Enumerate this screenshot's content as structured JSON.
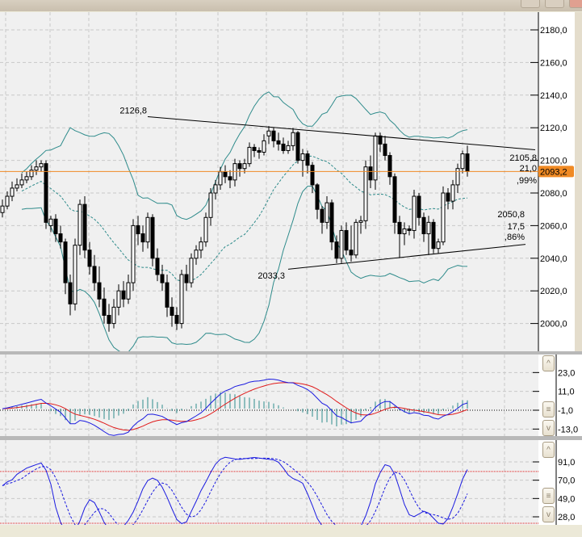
{
  "window": {
    "title_buttons": [
      "minimize-button",
      "maximize-button",
      "close-button"
    ],
    "colors": {
      "frame": "#ece9d8",
      "plot_bg": "#f0f0f0",
      "axis_bg": "#ffffff",
      "bands": "#2e8b8b",
      "orange": "#f08a24",
      "macd": "#1a1ae0",
      "signal": "#e01a1a",
      "histogram": "#2e8b8b",
      "stoch_k": "#1a1ae0",
      "stoch_d": "#1a1ae0",
      "level": "#e01a1a"
    }
  },
  "chart_data": [
    {
      "type": "candlestick",
      "title": "",
      "ylim": [
        1990,
        2190
      ],
      "yticks": [
        "2180,0",
        "2160,0",
        "2140,0",
        "2120,0",
        "2100,0",
        "2080,0",
        "2060,0",
        "2040,0",
        "2020,0",
        "2000,0"
      ],
      "ytick_values": [
        2180,
        2160,
        2140,
        2120,
        2100,
        2080,
        2060,
        2040,
        2020,
        2000
      ],
      "grid": true,
      "ohlc": [
        [
          2068,
          2076,
          2065,
          2072
        ],
        [
          2072,
          2081,
          2070,
          2078
        ],
        [
          2078,
          2087,
          2075,
          2083
        ],
        [
          2083,
          2089,
          2081,
          2085
        ],
        [
          2085,
          2092,
          2083,
          2088
        ],
        [
          2088,
          2093,
          2086,
          2090
        ],
        [
          2090,
          2097,
          2088,
          2094
        ],
        [
          2094,
          2100,
          2091,
          2096
        ],
        [
          2096,
          2100,
          2093,
          2098
        ],
        [
          2098,
          2100,
          2058,
          2062
        ],
        [
          2060,
          2066,
          2056,
          2064
        ],
        [
          2064,
          2067,
          2050,
          2055
        ],
        [
          2055,
          2060,
          2046,
          2050
        ],
        [
          2050,
          2052,
          2018,
          2025
        ],
        [
          2025,
          2030,
          2005,
          2012
        ],
        [
          2012,
          2052,
          2008,
          2048
        ],
        [
          2048,
          2076,
          2042,
          2073
        ],
        [
          2073,
          2078,
          2040,
          2045
        ],
        [
          2045,
          2050,
          2030,
          2035
        ],
        [
          2035,
          2042,
          2020,
          2025
        ],
        [
          2025,
          2035,
          2010,
          2015
        ],
        [
          2015,
          2022,
          2000,
          2005
        ],
        [
          2005,
          2012,
          1995,
          2000
        ],
        [
          2000,
          2015,
          1997,
          2010
        ],
        [
          2010,
          2024,
          2005,
          2020
        ],
        [
          2020,
          2026,
          2010,
          2015
        ],
        [
          2015,
          2030,
          2012,
          2025
        ],
        [
          2025,
          2064,
          2020,
          2060
        ],
        [
          2060,
          2066,
          2048,
          2055
        ],
        [
          2055,
          2060,
          2044,
          2050
        ],
        [
          2050,
          2068,
          2046,
          2065
        ],
        [
          2065,
          2067,
          2035,
          2040
        ],
        [
          2040,
          2046,
          2026,
          2030
        ],
        [
          2030,
          2036,
          2020,
          2025
        ],
        [
          2025,
          2030,
          2004,
          2010
        ],
        [
          2010,
          2016,
          1998,
          2005
        ],
        [
          2005,
          2010,
          1996,
          2000
        ],
        [
          2000,
          2033,
          1997,
          2030
        ],
        [
          2030,
          2036,
          2020,
          2025
        ],
        [
          2025,
          2043,
          2022,
          2040
        ],
        [
          2040,
          2048,
          2036,
          2045
        ],
        [
          2045,
          2053,
          2040,
          2050
        ],
        [
          2050,
          2068,
          2047,
          2065
        ],
        [
          2065,
          2083,
          2060,
          2080
        ],
        [
          2080,
          2088,
          2076,
          2085
        ],
        [
          2085,
          2096,
          2082,
          2093
        ],
        [
          2093,
          2097,
          2086,
          2090
        ],
        [
          2090,
          2094,
          2083,
          2088
        ],
        [
          2088,
          2101,
          2084,
          2098
        ],
        [
          2098,
          2100,
          2090,
          2095
        ],
        [
          2095,
          2101,
          2092,
          2098
        ],
        [
          2098,
          2111,
          2096,
          2108
        ],
        [
          2108,
          2110,
          2102,
          2106
        ],
        [
          2106,
          2108,
          2101,
          2105
        ],
        [
          2105,
          2116,
          2103,
          2112
        ],
        [
          2115,
          2121,
          2110,
          2118
        ],
        [
          2118,
          2120,
          2108,
          2112
        ],
        [
          2112,
          2117,
          2106,
          2110
        ],
        [
          2110,
          2114,
          2104,
          2106
        ],
        [
          2106,
          2112,
          2104,
          2109
        ],
        [
          2109,
          2120,
          2106,
          2117
        ],
        [
          2117,
          2118,
          2098,
          2100
        ],
        [
          2100,
          2107,
          2090,
          2104
        ],
        [
          2104,
          2106,
          2092,
          2097
        ],
        [
          2097,
          2099,
          2080,
          2085
        ],
        [
          2085,
          2086,
          2064,
          2070
        ],
        [
          2070,
          2072,
          2055,
          2062
        ],
        [
          2062,
          2078,
          2058,
          2074
        ],
        [
          2074,
          2076,
          2045,
          2050
        ],
        [
          2050,
          2054,
          2037,
          2040
        ],
        [
          2040,
          2060,
          2037,
          2057
        ],
        [
          2057,
          2062,
          2042,
          2045
        ],
        [
          2045,
          2060,
          2038,
          2042
        ],
        [
          2042,
          2064,
          2040,
          2062
        ],
        [
          2062,
          2066,
          2055,
          2063
        ],
        [
          2063,
          2100,
          2058,
          2096
        ],
        [
          2096,
          2103,
          2083,
          2088
        ],
        [
          2088,
          2117,
          2082,
          2115
        ],
        [
          2115,
          2117,
          2105,
          2110
        ],
        [
          2110,
          2115,
          2100,
          2103
        ],
        [
          2103,
          2105,
          2085,
          2090
        ],
        [
          2090,
          2092,
          2055,
          2062
        ],
        [
          2062,
          2066,
          2040,
          2055
        ],
        [
          2055,
          2062,
          2048,
          2058
        ],
        [
          2058,
          2060,
          2054,
          2057
        ],
        [
          2057,
          2082,
          2052,
          2078
        ],
        [
          2078,
          2080,
          2060,
          2065
        ],
        [
          2065,
          2068,
          2050,
          2055
        ],
        [
          2055,
          2066,
          2042,
          2062
        ],
        [
          2062,
          2064,
          2043,
          2046
        ],
        [
          2046,
          2052,
          2043,
          2050
        ],
        [
          2050,
          2084,
          2048,
          2080
        ],
        [
          2080,
          2083,
          2070,
          2075
        ],
        [
          2075,
          2088,
          2070,
          2085
        ],
        [
          2085,
          2098,
          2080,
          2095
        ],
        [
          2095,
          2106,
          2092,
          2104
        ],
        [
          2104,
          2109,
          2090,
          2093.2
        ]
      ],
      "overlays": [
        "bollinger-bands",
        "moving-average"
      ],
      "current_price": {
        "value": 2093.2,
        "label": "2093,2"
      },
      "trendlines": [
        {
          "name": "resistance",
          "from_bar": 30,
          "from_price": 2126.8,
          "to_bar": 110,
          "to_price": 2106.5,
          "start_label": "2126,8",
          "end_labels": [
            "2105,8",
            "21,0",
            ",99%"
          ]
        },
        {
          "name": "support",
          "from_bar": 59,
          "from_price": 2033.3,
          "to_bar": 108,
          "to_price": 2048.5,
          "start_label": "2033,3",
          "end_labels": [
            "2050,8",
            "17,5",
            ",86%"
          ]
        }
      ]
    },
    {
      "type": "line",
      "indicator": "macd",
      "ylim": [
        -16,
        28
      ],
      "yticks": [
        "23,0",
        "11,0",
        "-1,0",
        "-13,0"
      ],
      "ytick_values": [
        23,
        11,
        -1,
        -13
      ],
      "series": [
        {
          "role": "macd"
        },
        {
          "role": "signal"
        },
        {
          "role": "histogram"
        }
      ]
    },
    {
      "type": "line",
      "indicator": "stochastic",
      "ylim": [
        18,
        101
      ],
      "yticks": [
        "91,0",
        "70,0",
        "49,0",
        "28,0"
      ],
      "ytick_values": [
        91,
        70,
        49,
        28
      ],
      "levels": [
        80,
        20
      ],
      "series": [
        {
          "role": "k"
        },
        {
          "role": "d"
        }
      ]
    }
  ],
  "scroll": {
    "up": "^",
    "middle": "≡",
    "down": "v"
  }
}
